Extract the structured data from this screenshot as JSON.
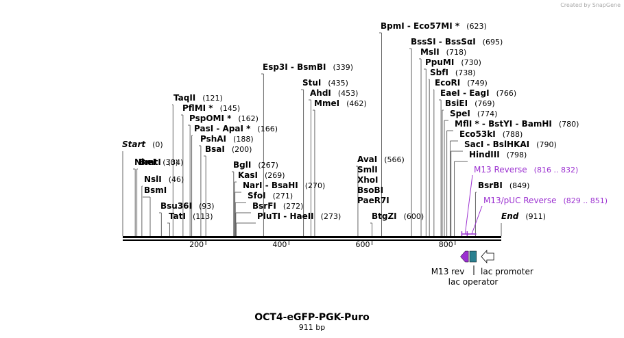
{
  "title": "OCT4-eGFP-PGK-Puro",
  "length_label": "911 bp",
  "credit": "Created by SnapGene",
  "axis": {
    "length": 911,
    "ticks": [
      "200",
      "400",
      "600",
      "800"
    ]
  },
  "enzymes": [
    {
      "name": "NheI",
      "pos": "(30)",
      "site": 30
    },
    {
      "name": "BmtI",
      "pos": "(34)",
      "site": 34
    },
    {
      "name": "NslI",
      "pos": "(46)",
      "site": 46
    },
    {
      "name": "BsmI",
      "pos": "",
      "site": 66
    },
    {
      "name": "Bsu36I",
      "pos": "(93)",
      "site": 93
    },
    {
      "name": "TatI",
      "pos": "(113)",
      "site": 113
    },
    {
      "name": "TaqII",
      "pos": "(121)",
      "site": 121
    },
    {
      "name": "PflMI *",
      "pos": "(145)",
      "site": 145
    },
    {
      "name": "PspOMI *",
      "pos": "(162)",
      "site": 162
    },
    {
      "name": "PasI  -  ApaI *",
      "pos": "(166)",
      "site": 166
    },
    {
      "name": "PshAI",
      "pos": "(188)",
      "site": 188
    },
    {
      "name": "BsaI",
      "pos": "(200)",
      "site": 200
    },
    {
      "name": "BglI",
      "pos": "(267)",
      "site": 267
    },
    {
      "name": "KasI",
      "pos": "(269)",
      "site": 269
    },
    {
      "name": "NarI  -  BsaHI",
      "pos": "(270)",
      "site": 270
    },
    {
      "name": "SfoI",
      "pos": "(271)",
      "site": 271
    },
    {
      "name": "BsrFI",
      "pos": "(272)",
      "site": 272
    },
    {
      "name": "PluTI  -  HaeII",
      "pos": "(273)",
      "site": 273
    },
    {
      "name": "Esp3I  -  BsmBI",
      "pos": "(339)",
      "site": 339
    },
    {
      "name": "StuI",
      "pos": "(435)",
      "site": 435
    },
    {
      "name": "AhdI",
      "pos": "(453)",
      "site": 453
    },
    {
      "name": "MmeI",
      "pos": "(462)",
      "site": 462
    },
    {
      "name": "AvaI",
      "pos": "(566)",
      "site": 566
    },
    {
      "name": "SmlI",
      "pos": "",
      "site": 566
    },
    {
      "name": "XhoI",
      "pos": "",
      "site": 566
    },
    {
      "name": "BsoBI",
      "pos": "",
      "site": 566
    },
    {
      "name": "PaeR7I",
      "pos": "",
      "site": 566
    },
    {
      "name": "BtgZI",
      "pos": "(600)",
      "site": 600
    },
    {
      "name": "BpmI  -  Eco57MI *",
      "pos": "(623)",
      "site": 623
    },
    {
      "name": "BssSI  -  BssSαI",
      "pos": "(695)",
      "site": 695
    },
    {
      "name": "MslI",
      "pos": "(718)",
      "site": 718
    },
    {
      "name": "PpuMI",
      "pos": "(730)",
      "site": 730
    },
    {
      "name": "SbfI",
      "pos": "(738)",
      "site": 738
    },
    {
      "name": "EcoRI",
      "pos": "(749)",
      "site": 749
    },
    {
      "name": "EaeI  -  EagI",
      "pos": "(766)",
      "site": 766
    },
    {
      "name": "BsiEI",
      "pos": "(769)",
      "site": 769
    },
    {
      "name": "SpeI",
      "pos": "(774)",
      "site": 774
    },
    {
      "name": "MflI *  -  BstYI  -  BamHI",
      "pos": "(780)",
      "site": 780
    },
    {
      "name": "Eco53kI",
      "pos": "(788)",
      "site": 788
    },
    {
      "name": "SacI  -  BslHKAI",
      "pos": "(790)",
      "site": 790
    },
    {
      "name": "HindIII",
      "pos": "(798)",
      "site": 798
    },
    {
      "name": "BsrBI",
      "pos": "(849)",
      "site": 849
    }
  ],
  "ends": [
    {
      "name": "Start",
      "pos": "(0)",
      "site": 0
    },
    {
      "name": "End",
      "pos": "(911)",
      "site": 911
    }
  ],
  "primers": [
    {
      "name": "M13 Reverse",
      "pos": "(816 .. 832)",
      "start": 816,
      "end": 832
    },
    {
      "name": "M13/pUC Reverse",
      "pos": "(829 .. 851)",
      "start": 829,
      "end": 851
    }
  ],
  "features": [
    {
      "name": "M13 rev",
      "start": 816,
      "end": 832,
      "color": "#9b30d0"
    },
    {
      "name": "lac operator",
      "start": 840,
      "end": 856,
      "color": "#2a7f8f"
    },
    {
      "name": "lac promoter",
      "start": 863,
      "end": 893,
      "color": "#ffffff"
    }
  ]
}
